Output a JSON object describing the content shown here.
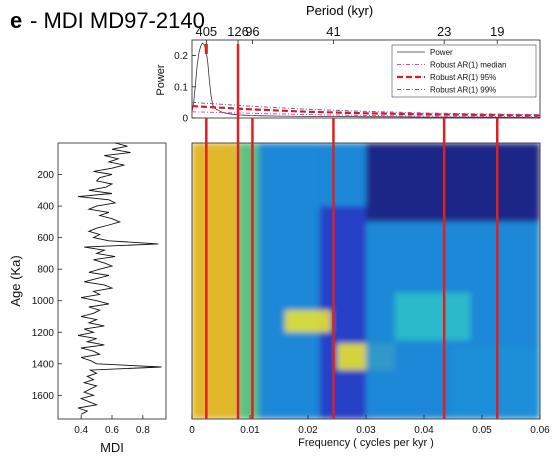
{
  "figure": {
    "panel_letter": "e",
    "title": "- MDI MD97-2140",
    "top_axis_label": "Period (kyr)"
  },
  "colors": {
    "power_line": "#333333",
    "median": "#e040e0",
    "ar95": "#e01818",
    "ar99": "#6a5acd",
    "marker_line": "#e02020"
  },
  "chart_data": [
    {
      "id": "power_spectrum",
      "type": "line",
      "ylabel": "Power",
      "xlim": [
        0,
        0.06
      ],
      "ylim": [
        0,
        0.25
      ],
      "yticks": [
        0,
        0.1,
        0.2
      ],
      "top_ticks": [
        {
          "label": "405",
          "freq": 0.00247
        },
        {
          "label": "126",
          "freq": 0.00794
        },
        {
          "label": "96",
          "freq": 0.01042
        },
        {
          "label": "41",
          "freq": 0.02439
        },
        {
          "label": "23",
          "freq": 0.04348
        },
        {
          "label": "19",
          "freq": 0.05263
        }
      ],
      "series": [
        {
          "name": "Power",
          "style": "solid",
          "x": [
            0,
            0.0003,
            0.0006,
            0.0009,
            0.0012,
            0.0015,
            0.0018,
            0.0021,
            0.0024,
            0.0027,
            0.003,
            0.0033,
            0.0036,
            0.004,
            0.0045,
            0.005,
            0.0055,
            0.006,
            0.007,
            0.008,
            0.009,
            0.01,
            0.012,
            0.015,
            0.02,
            0.025,
            0.03,
            0.035,
            0.04,
            0.045,
            0.05,
            0.055,
            0.06
          ],
          "y": [
            0.02,
            0.05,
            0.11,
            0.17,
            0.21,
            0.23,
            0.24,
            0.235,
            0.22,
            0.18,
            0.12,
            0.07,
            0.04,
            0.03,
            0.025,
            0.02,
            0.017,
            0.015,
            0.012,
            0.01,
            0.009,
            0.008,
            0.007,
            0.006,
            0.005,
            0.005,
            0.004,
            0.004,
            0.003,
            0.003,
            0.003,
            0.002,
            0.002
          ]
        },
        {
          "name": "Robust AR(1) median",
          "style": "dashdot",
          "x": [
            0,
            0.01,
            0.02,
            0.03,
            0.04,
            0.05,
            0.06
          ],
          "y": [
            0.02,
            0.015,
            0.011,
            0.008,
            0.006,
            0.005,
            0.004
          ]
        },
        {
          "name": "Robust AR(1) 95%",
          "style": "dashed",
          "x": [
            0,
            0.01,
            0.02,
            0.03,
            0.04,
            0.05,
            0.06
          ],
          "y": [
            0.038,
            0.028,
            0.02,
            0.015,
            0.012,
            0.01,
            0.008
          ]
        },
        {
          "name": "Robust AR(1) 99%",
          "style": "dashdot",
          "x": [
            0,
            0.01,
            0.02,
            0.03,
            0.04,
            0.05,
            0.06
          ],
          "y": [
            0.05,
            0.038,
            0.028,
            0.021,
            0.016,
            0.013,
            0.011
          ]
        }
      ],
      "legend": "top-right"
    },
    {
      "id": "mdi_record",
      "type": "line",
      "xlabel": "MDI",
      "ylabel": "Age (Ka)",
      "xlim": [
        0.25,
        0.95
      ],
      "ylim": [
        0,
        1750
      ],
      "xticks": [
        0.4,
        0.6,
        0.8
      ],
      "yticks": [
        200,
        400,
        600,
        800,
        1000,
        1200,
        1400,
        1600
      ],
      "series": [
        {
          "name": "MDI",
          "age": [
            0,
            20,
            40,
            60,
            80,
            100,
            120,
            140,
            160,
            180,
            200,
            220,
            240,
            260,
            280,
            300,
            320,
            340,
            360,
            380,
            400,
            420,
            440,
            460,
            480,
            500,
            520,
            540,
            560,
            580,
            600,
            620,
            640,
            660,
            680,
            700,
            720,
            740,
            760,
            780,
            800,
            820,
            840,
            860,
            880,
            900,
            920,
            940,
            960,
            980,
            1000,
            1020,
            1040,
            1060,
            1080,
            1100,
            1120,
            1140,
            1160,
            1180,
            1200,
            1220,
            1240,
            1260,
            1280,
            1300,
            1320,
            1340,
            1360,
            1380,
            1400,
            1420,
            1440,
            1460,
            1480,
            1500,
            1520,
            1540,
            1560,
            1580,
            1600,
            1620,
            1640,
            1660,
            1680,
            1700,
            1720
          ],
          "mdi": [
            0.62,
            0.7,
            0.6,
            0.72,
            0.55,
            0.64,
            0.58,
            0.68,
            0.6,
            0.48,
            0.6,
            0.52,
            0.5,
            0.6,
            0.56,
            0.45,
            0.6,
            0.38,
            0.58,
            0.62,
            0.5,
            0.45,
            0.58,
            0.52,
            0.6,
            0.65,
            0.58,
            0.5,
            0.45,
            0.52,
            0.48,
            0.58,
            0.9,
            0.42,
            0.55,
            0.5,
            0.62,
            0.48,
            0.55,
            0.6,
            0.52,
            0.45,
            0.58,
            0.5,
            0.42,
            0.55,
            0.6,
            0.48,
            0.52,
            0.4,
            0.5,
            0.58,
            0.45,
            0.52,
            0.48,
            0.4,
            0.5,
            0.45,
            0.55,
            0.42,
            0.48,
            0.38,
            0.5,
            0.44,
            0.55,
            0.4,
            0.48,
            0.52,
            0.4,
            0.46,
            0.5,
            0.92,
            0.46,
            0.5,
            0.44,
            0.48,
            0.42,
            0.5,
            0.46,
            0.42,
            0.48,
            0.4,
            0.45,
            0.5,
            0.38,
            0.44,
            0.4
          ]
        }
      ]
    },
    {
      "id": "evolutive_spectrum",
      "type": "heatmap",
      "xlabel": "Frequency ( cycles per kyr )",
      "xlim": [
        0,
        0.06
      ],
      "ylim": [
        0,
        1750
      ],
      "xticks": [
        0,
        0.01,
        0.02,
        0.03,
        0.04,
        0.05,
        0.06
      ],
      "xtick_labels": [
        "0",
        "0.01",
        "0.02",
        "0.03",
        "0.04",
        "0.05",
        "0.06"
      ],
      "colormap": [
        "#1a237e",
        "#283fc7",
        "#1e90d8",
        "#2bc0c8",
        "#62d07a",
        "#e8e230",
        "#f5c518"
      ],
      "features": [
        {
          "freq": [
            0.0,
            0.008
          ],
          "age": [
            0,
            1750
          ],
          "level": 0.95
        },
        {
          "freq": [
            0.008,
            0.0115
          ],
          "age": [
            0,
            1750
          ],
          "level": 0.7
        },
        {
          "freq": [
            0.0115,
            0.022
          ],
          "age": [
            0,
            1750
          ],
          "level": 0.35
        },
        {
          "freq": [
            0.016,
            0.024
          ],
          "age": [
            1060,
            1200
          ],
          "level": 0.85
        },
        {
          "freq": [
            0.025,
            0.035
          ],
          "age": [
            1270,
            1440
          ],
          "level": 0.9
        },
        {
          "freq": [
            0.022,
            0.03
          ],
          "age": [
            0,
            400
          ],
          "level": 0.25
        },
        {
          "freq": [
            0.03,
            0.06
          ],
          "age": [
            0,
            500
          ],
          "level": 0.05
        },
        {
          "freq": [
            0.03,
            0.06
          ],
          "age": [
            500,
            1750
          ],
          "level": 0.3
        },
        {
          "freq": [
            0.035,
            0.048
          ],
          "age": [
            950,
            1250
          ],
          "level": 0.45
        },
        {
          "freq": [
            0.045,
            0.06
          ],
          "age": [
            1300,
            1750
          ],
          "level": 0.4
        }
      ]
    }
  ]
}
